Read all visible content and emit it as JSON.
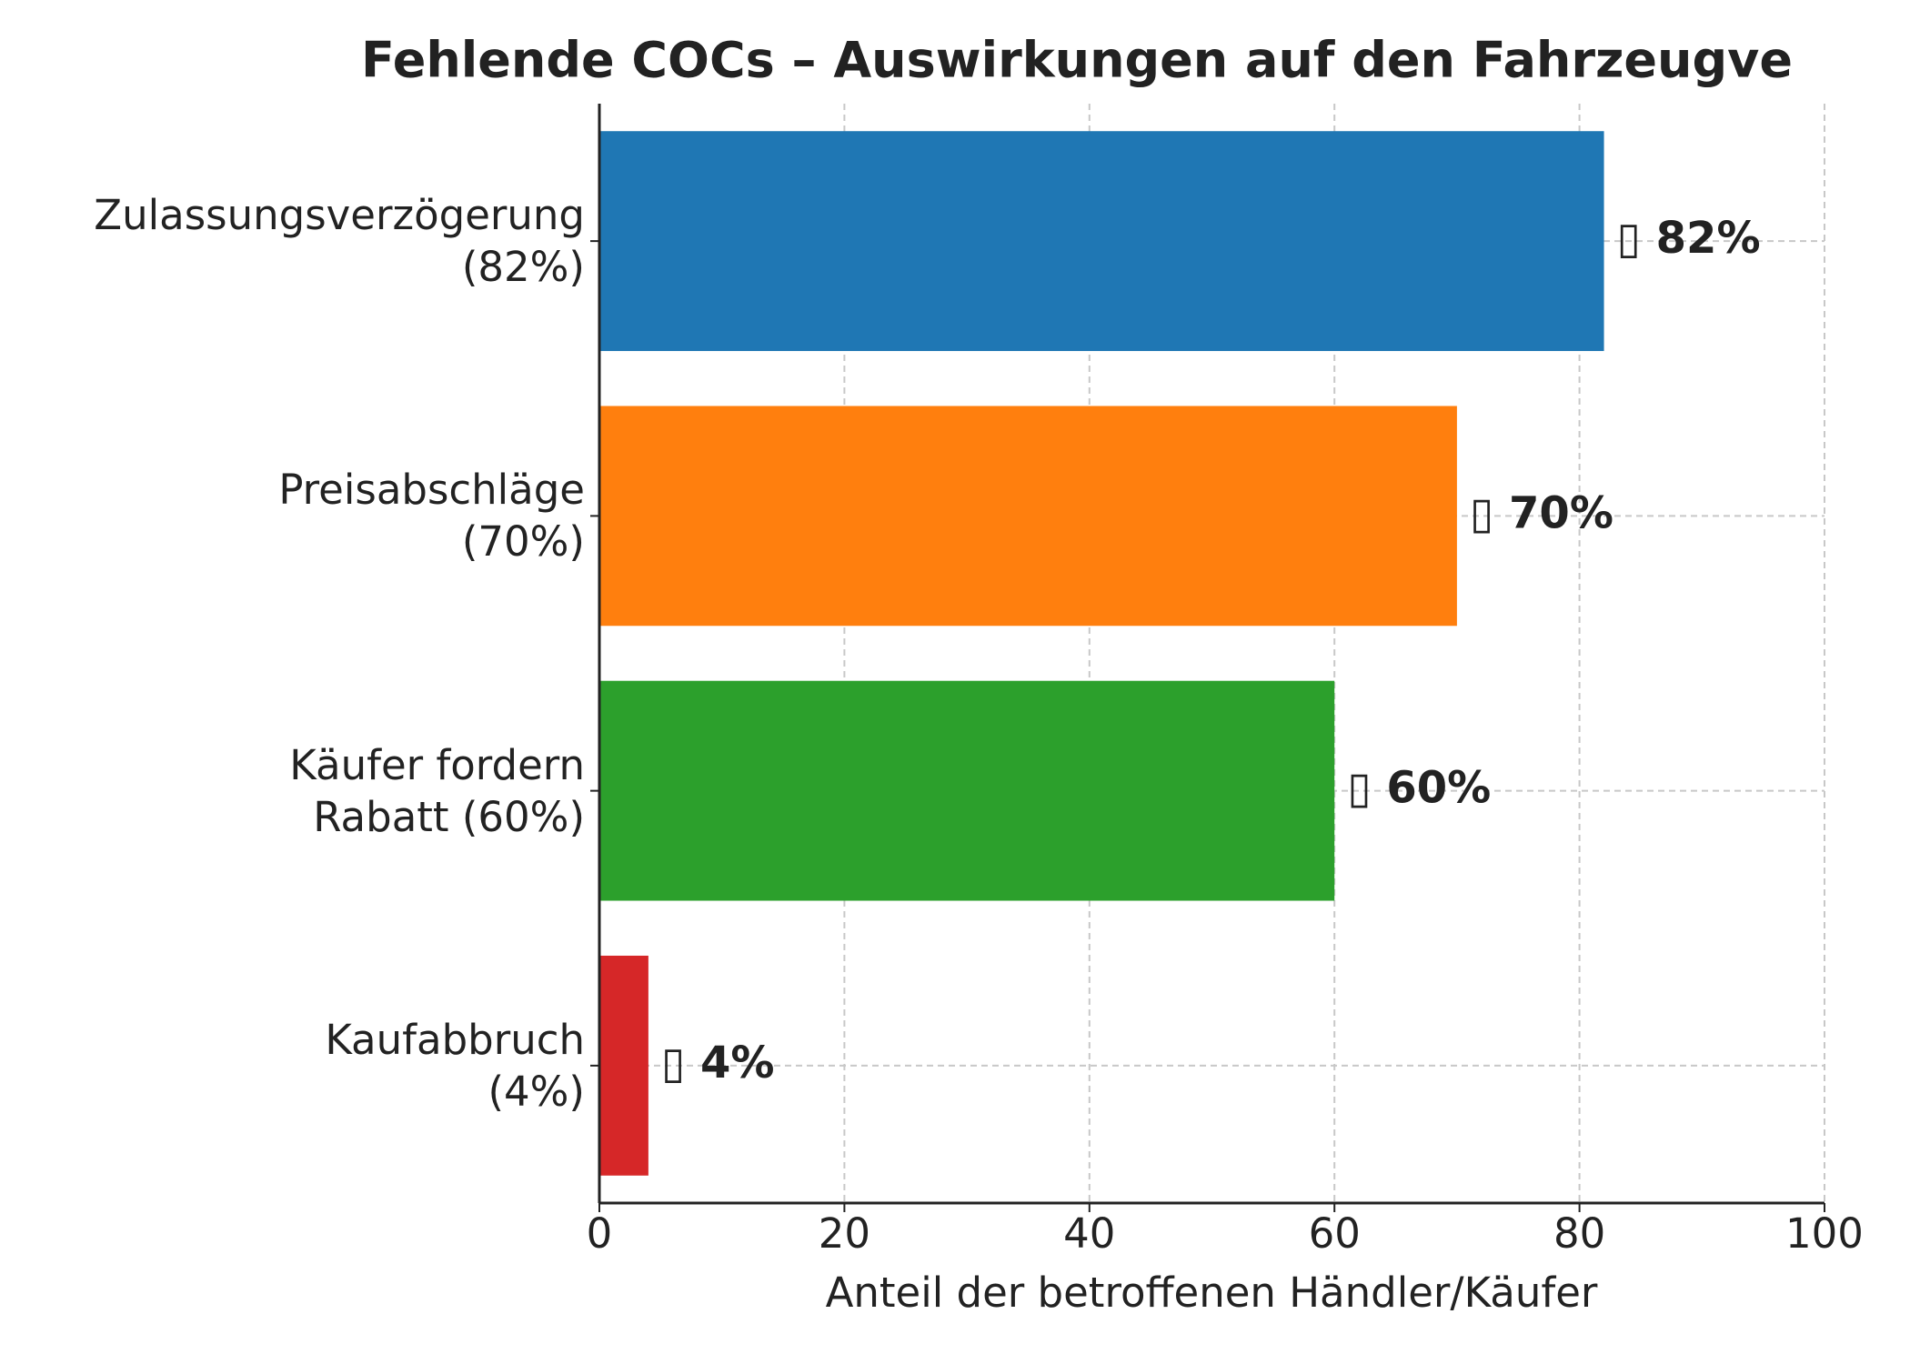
{
  "chart_data": {
    "type": "barh",
    "title": "Fehlende COCs – Auswirkungen auf den Fahrzeugve",
    "xlabel": "Anteil der betroffenen Händler/Käufer",
    "categories": [
      "Zulassungsverzögerung\n(82%)",
      "Preisabschläge\n(70%)",
      "Käufer fordern\nRabatt (60%)",
      "Kaufabbruch\n(4%)"
    ],
    "values": [
      82,
      70,
      60,
      4
    ],
    "value_labels": [
      "▯ 82%",
      "▯ 70%",
      "▯ 60%",
      "▯ 4%"
    ],
    "colors": [
      "#1f77b4",
      "#ff7f0e",
      "#2ca02c",
      "#d62728"
    ],
    "xlim": [
      0,
      100
    ],
    "xticks": [
      0,
      20,
      40,
      60,
      80,
      100
    ],
    "grid": true
  }
}
